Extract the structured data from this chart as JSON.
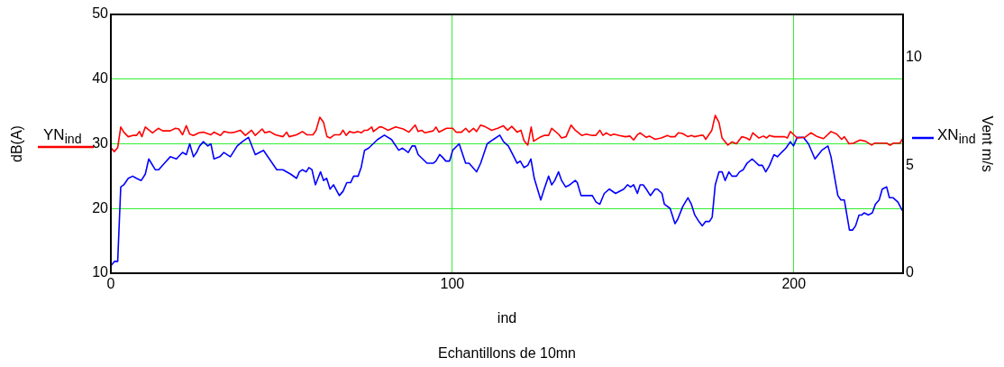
{
  "chart_data": {
    "type": "line",
    "xlabel": "ind",
    "ylabel": "dB(A)",
    "y2label": "Vent m/s",
    "annotations": [
      "Echantillons de 10mn"
    ],
    "xlim": [
      0,
      232
    ],
    "xticks": [
      0,
      100,
      200
    ],
    "ylim": [
      10,
      50
    ],
    "yticks": [
      10,
      20,
      30,
      40,
      50
    ],
    "y2lim": [
      0,
      12
    ],
    "y2ticks": [
      0,
      5,
      10
    ],
    "grid": true,
    "marker": "none",
    "line_style": "solid",
    "legend": "right",
    "series": [
      {
        "name": "YN$_{ind}$",
        "color": "#ff0000",
        "x": [
          0,
          1,
          2,
          2.9,
          3.8,
          5.1,
          6.4,
          7.5,
          8.4,
          9.1,
          10.1,
          12.2,
          13.9,
          15.2,
          17.4,
          18.9,
          19.9,
          21,
          22.1,
          23.1,
          24.2,
          25.8,
          27.1,
          29.3,
          30.2,
          32.1,
          33.1,
          35,
          36.3,
          37.9,
          39.4,
          41.2,
          42.3,
          44.3,
          45.1,
          46.5,
          48.2,
          50.4,
          51.5,
          52.2,
          54.4,
          56.1,
          57.4,
          59.2,
          60.1,
          61.2,
          62.3,
          63.3,
          64.2,
          65.5,
          67.1,
          68,
          68.9,
          69.9,
          71.1,
          72.4,
          73.3,
          74.3,
          75.2,
          76.4,
          76.9,
          78.6,
          79.4,
          81.2,
          83.4,
          85.6,
          87.3,
          89.1,
          90,
          91,
          92,
          94.4,
          95.2,
          96.1,
          98.3,
          100.1,
          101.1,
          102.7,
          103.9,
          104.9,
          106.2,
          107.1,
          108.3,
          109.8,
          111.5,
          113.3,
          114.9,
          116.2,
          117.4,
          119,
          120.1,
          121,
          122.1,
          123.1,
          123.8,
          125.6,
          126.9,
          128.2,
          129.1,
          131.1,
          132,
          133.3,
          134.8,
          136,
          137.9,
          139.2,
          141,
          142,
          143.2,
          144.1,
          145.1,
          146.3,
          147.3,
          148.9,
          150.7,
          152,
          153.1,
          154.2,
          155,
          156.8,
          157.7,
          159.4,
          161.2,
          163,
          163.8,
          165.2,
          166.2,
          167.4,
          169,
          170,
          170.9,
          172.6,
          173.5,
          174.2,
          176,
          177,
          178.1,
          179,
          180.7,
          181.9,
          183.2,
          184.8,
          186.1,
          187.1,
          188,
          189.8,
          191.1,
          192,
          192.9,
          194.2,
          197.3,
          198.1,
          199,
          201,
          203.2,
          205,
          206.9,
          208.7,
          210.9,
          212.6,
          214,
          214.8,
          216.2,
          217.5,
          219.4,
          221,
          222.8,
          223.6,
          225,
          227.2,
          228.2,
          229.2,
          231.1,
          232
        ],
        "values": [
          29.4,
          28.8,
          29.4,
          32.6,
          31.8,
          31.1,
          31.3,
          31.3,
          31.9,
          31.1,
          32.6,
          31.7,
          32.4,
          32,
          32,
          32.4,
          32.3,
          31.4,
          32.8,
          31.5,
          31.3,
          31.7,
          31.8,
          31.4,
          31.8,
          31.3,
          31.9,
          31.7,
          31.8,
          32.1,
          31.3,
          32.1,
          31.3,
          32.3,
          31.7,
          31.9,
          31.4,
          31.1,
          31.8,
          31.1,
          31.4,
          31.9,
          31.4,
          31.4,
          32.1,
          34.1,
          33.3,
          31.1,
          30.9,
          31.4,
          31.4,
          32.1,
          31.3,
          31.9,
          31.7,
          31.9,
          31.7,
          32.1,
          32.1,
          32.6,
          31.9,
          32.6,
          32.6,
          32.1,
          32.6,
          32.3,
          31.8,
          32.9,
          31.9,
          32.1,
          31.7,
          32,
          32.6,
          31.8,
          32.4,
          32.4,
          31.8,
          31.8,
          32.4,
          31.8,
          32.4,
          31.9,
          32.9,
          32.6,
          32.1,
          32.4,
          32.8,
          32.1,
          32.7,
          31.8,
          32.1,
          30.5,
          29.8,
          32.6,
          30.4,
          31,
          31.3,
          31.3,
          32.4,
          31.5,
          30.9,
          31.1,
          32.9,
          32.1,
          31.3,
          31.5,
          31.3,
          31.3,
          32.1,
          31.3,
          31.7,
          31.3,
          31.5,
          31.3,
          31.1,
          31.2,
          30.6,
          31.4,
          31.7,
          31,
          31.2,
          30.7,
          30.9,
          31.3,
          31.1,
          31.1,
          31.7,
          31.6,
          31.1,
          31.3,
          31.1,
          31.3,
          31.3,
          30.7,
          32.1,
          34.4,
          33.3,
          30.9,
          29.8,
          30.3,
          30,
          31.1,
          30.9,
          30.6,
          31.7,
          30.9,
          31.2,
          30.9,
          31.3,
          31.1,
          31.1,
          30.9,
          31.9,
          30.9,
          31,
          31.7,
          31.1,
          30.8,
          31.9,
          31.5,
          30.7,
          31.1,
          30,
          30.1,
          30.6,
          30.4,
          29.8,
          30.1,
          30.1,
          30.1,
          29.8,
          30.1,
          30.1,
          30.9
        ]
      },
      {
        "name": "XN$_{ind}$",
        "color": "#0000ff",
        "axis": "y2",
        "x": [
          0,
          1.1,
          2,
          2.9,
          3.8,
          5.1,
          6.4,
          7.5,
          8.9,
          10.1,
          11.1,
          13,
          14,
          15.7,
          17.4,
          19.2,
          21,
          22.1,
          23.1,
          24.2,
          25.1,
          26,
          27.1,
          28.4,
          29.3,
          30.2,
          31.9,
          33.1,
          35,
          37,
          38.5,
          40.3,
          42.3,
          44.7,
          48.6,
          50.4,
          52.6,
          54.4,
          55.2,
          56.1,
          57.2,
          58,
          58.9,
          59.9,
          61.4,
          62.3,
          63.2,
          64.2,
          65.2,
          66.9,
          68,
          69.1,
          70.2,
          71.1,
          72.4,
          73.3,
          74.3,
          75.5,
          78.1,
          80.1,
          82.2,
          84.3,
          85.4,
          87.1,
          88.2,
          89.1,
          90,
          92.6,
          94.4,
          95.2,
          96.3,
          97,
          98.1,
          99.2,
          100.1,
          102,
          103.9,
          104.9,
          107.1,
          108.3,
          110.2,
          112,
          113.9,
          115,
          116.4,
          117.7,
          119,
          119.9,
          121,
          122.1,
          123,
          124,
          125.9,
          126.9,
          128.2,
          129.1,
          130,
          131.1,
          132,
          133.2,
          134.4,
          136,
          136.6,
          137.7,
          139.2,
          141,
          142.1,
          143.2,
          144.5,
          146,
          147.8,
          150.2,
          151.3,
          152.2,
          153.1,
          154.2,
          155,
          155.9,
          156.8,
          158,
          159.4,
          160.1,
          161.4,
          162.1,
          163.8,
          165.2,
          166,
          167.5,
          169,
          170,
          171,
          172.2,
          173.2,
          174.2,
          175.3,
          176.1,
          177,
          178.1,
          179,
          179.9,
          181,
          181.9,
          183.2,
          184.1,
          185.2,
          186.3,
          187.8,
          189.8,
          190.8,
          191.8,
          192.9,
          194.2,
          195.2,
          196.4,
          197.7,
          199,
          199.9,
          201,
          202.8,
          204.3,
          206.2,
          208.2,
          210,
          210.9,
          212.9,
          213.8,
          214.8,
          216.3,
          217.2,
          218.1,
          219.1,
          219.9,
          220.6,
          221.9,
          223,
          223.9,
          225,
          225.9,
          227.2,
          228,
          229.1,
          230.5,
          231.8
        ],
        "values": [
          0.35,
          0.55,
          0.55,
          4,
          4.1,
          4.4,
          4.5,
          4.4,
          4.3,
          4.6,
          5.3,
          4.8,
          4.8,
          5.1,
          5.4,
          5.3,
          5.6,
          5.5,
          6,
          5.4,
          5.6,
          5.9,
          6.1,
          5.9,
          6,
          5.3,
          5.4,
          5.6,
          5.4,
          5.9,
          6.1,
          6.3,
          5.5,
          5.7,
          4.8,
          4.8,
          4.6,
          4.4,
          4.7,
          4.8,
          4.7,
          4.9,
          4.8,
          4.1,
          4.7,
          4.3,
          4.4,
          3.9,
          4.1,
          3.6,
          3.8,
          4.2,
          4.2,
          4.5,
          4.5,
          4.9,
          5.7,
          5.8,
          6.2,
          6.4,
          6.2,
          5.7,
          5.8,
          5.6,
          5.9,
          5.9,
          5.5,
          5.1,
          5.1,
          5.2,
          5.5,
          5.4,
          5.2,
          5.2,
          5.7,
          6,
          5.1,
          5.1,
          4.7,
          5.1,
          6,
          6.2,
          6.4,
          6.1,
          5.9,
          5.5,
          5.1,
          5.2,
          4.9,
          5,
          5.3,
          4.4,
          3.4,
          3.9,
          4.5,
          4.1,
          4.3,
          4.7,
          4.3,
          4,
          4.1,
          4.3,
          4.2,
          3.6,
          3.6,
          3.6,
          3.3,
          3.2,
          3.7,
          3.9,
          3.7,
          3.9,
          4.1,
          4,
          4.1,
          3.7,
          4.1,
          4.1,
          3.9,
          3.6,
          3.9,
          3.9,
          3.7,
          3.2,
          3,
          2.3,
          2.5,
          3.1,
          3.5,
          3.2,
          2.7,
          2.4,
          2.2,
          2.4,
          2.4,
          2.6,
          4.1,
          4.7,
          4.7,
          4.3,
          4.7,
          4.5,
          4.5,
          4.7,
          4.8,
          5.1,
          5.3,
          5,
          5,
          4.7,
          5,
          5.5,
          5.4,
          5.6,
          5.8,
          6.1,
          5.9,
          6.3,
          6.3,
          6,
          5.3,
          5.7,
          5.9,
          5.4,
          3.6,
          3.4,
          3.4,
          2,
          2,
          2.2,
          2.7,
          2.7,
          2.8,
          2.7,
          2.8,
          3.2,
          3.4,
          3.9,
          4,
          3.5,
          3.5,
          3.3,
          2.9
        ]
      }
    ]
  }
}
